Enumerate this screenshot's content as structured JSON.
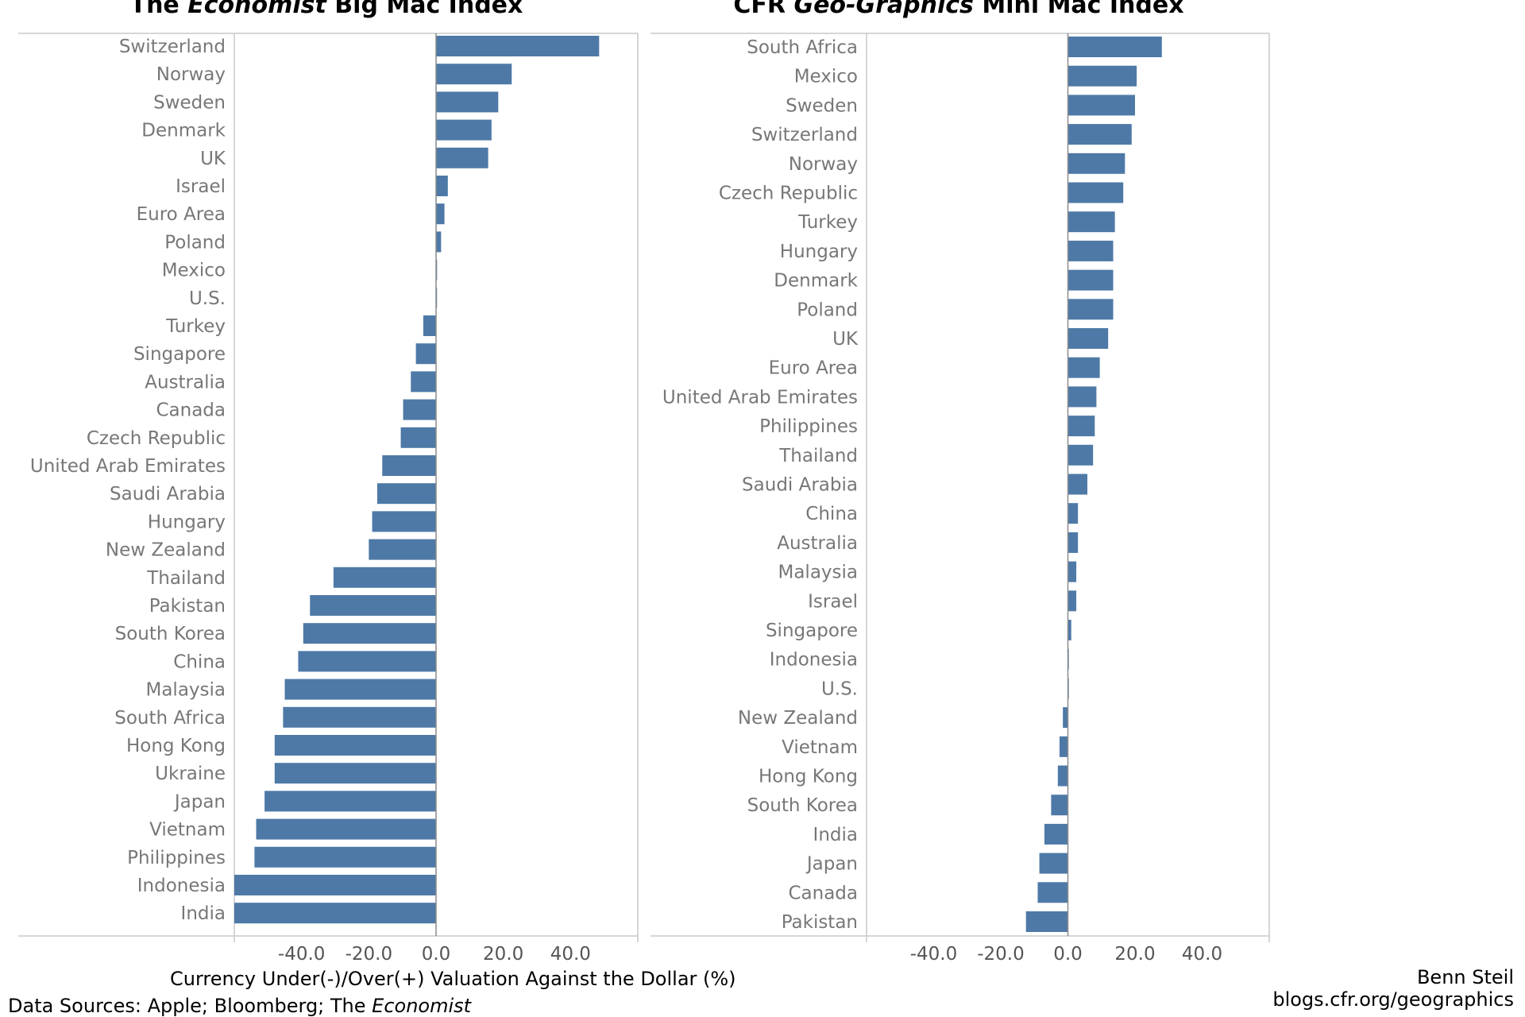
{
  "chart_data": [
    {
      "type": "bar",
      "orientation": "horizontal",
      "title_parts": [
        {
          "text": "The ",
          "italic": false
        },
        {
          "text": "Economist",
          "italic": true
        },
        {
          "text": " Big Mac Index",
          "italic": false
        }
      ],
      "xlim": [
        -60,
        60
      ],
      "xticks": [
        -40,
        -20,
        0,
        20,
        40
      ],
      "xtick_labels": [
        "-40.0",
        "-20.0",
        "0.0",
        "20.0",
        "40.0"
      ],
      "categories": [
        "Switzerland",
        "Norway",
        "Sweden",
        "Denmark",
        "UK",
        "Israel",
        "Euro Area",
        "Poland",
        "Mexico",
        "U.S.",
        "Turkey",
        "Singapore",
        "Australia",
        "Canada",
        "Czech Republic",
        "United Arab Emirates",
        "Saudi Arabia",
        "Hungary",
        "New Zealand",
        "Thailand",
        "Pakistan",
        "South Korea",
        "China",
        "Malaysia",
        "South Africa",
        "Hong Kong",
        "Ukraine",
        "Japan",
        "Vietnam",
        "Philippines",
        "Indonesia",
        "India"
      ],
      "values": [
        48.5,
        22.5,
        18.5,
        16.5,
        15.5,
        3.5,
        2.5,
        1.5,
        0.3,
        0.1,
        -3.8,
        -6.0,
        -7.5,
        -9.8,
        -10.5,
        -16.0,
        -17.5,
        -19.0,
        -20.0,
        -30.5,
        -37.5,
        -39.5,
        -41.0,
        -45.0,
        -45.5,
        -48.0,
        -48.0,
        -51.0,
        -53.5,
        -54.0,
        -60.0,
        -60.0
      ],
      "grid": false
    },
    {
      "type": "bar",
      "orientation": "horizontal",
      "title_parts": [
        {
          "text": "CFR ",
          "italic": false
        },
        {
          "text": "Geo-Graphics",
          "italic": true
        },
        {
          "text": " Mini Mac Index",
          "italic": false
        }
      ],
      "xlim": [
        -60,
        60
      ],
      "xticks": [
        -40,
        -20,
        0,
        20,
        40
      ],
      "xtick_labels": [
        "-40.0",
        "-20.0",
        "0.0",
        "20.0",
        "40.0"
      ],
      "categories": [
        "South Africa",
        "Mexico",
        "Sweden",
        "Switzerland",
        "Norway",
        "Czech Republic",
        "Turkey",
        "Hungary",
        "Denmark",
        "Poland",
        "UK",
        "Euro Area",
        "United Arab Emirates",
        "Philippines",
        "Thailand",
        "Saudi Arabia",
        "China",
        "Australia",
        "Malaysia",
        "Israel",
        "Singapore",
        "Indonesia",
        "U.S.",
        "New Zealand",
        "Vietnam",
        "Hong Kong",
        "South Korea",
        "India",
        "Japan",
        "Canada",
        "Pakistan"
      ],
      "values": [
        28.0,
        20.5,
        20.0,
        19.0,
        17.0,
        16.5,
        14.0,
        13.5,
        13.5,
        13.5,
        12.0,
        9.5,
        8.5,
        8.0,
        7.5,
        5.8,
        3.0,
        3.0,
        2.5,
        2.5,
        1.0,
        0.2,
        0.1,
        -1.5,
        -2.5,
        -3.0,
        -5.0,
        -7.0,
        -8.5,
        -9.0,
        -12.5
      ],
      "grid": false
    }
  ],
  "footer": {
    "xlabel": "Currency Under(-)/Over(+) Valuation Against the Dollar (%)",
    "sources_prefix": "Data Sources: Apple; Bloomberg; The ",
    "sources_italic": "Economist",
    "author": "Benn Steil",
    "blog": "blogs.cfr.org/geographics"
  },
  "colors": {
    "bar": "#4e79a7",
    "category_text": "#777777",
    "tick_text": "#555555"
  }
}
